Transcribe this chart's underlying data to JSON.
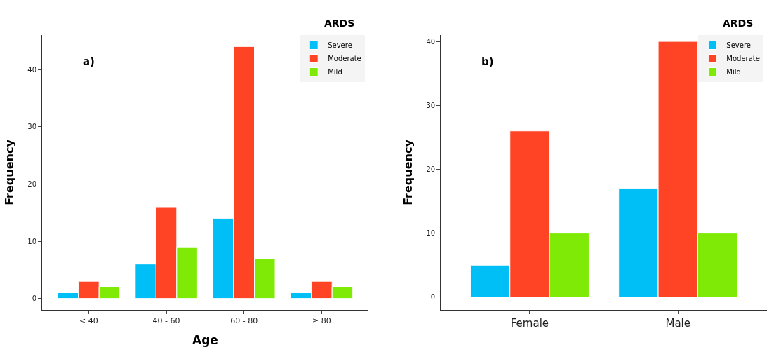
{
  "chart_data": [
    {
      "type": "bar",
      "title": "ARDS",
      "xlabel": "Age",
      "ylabel": "Frequency",
      "annotations": [
        "a)"
      ],
      "categories": [
        "< 40",
        "40 - 60",
        "60 - 80",
        "≥ 80"
      ],
      "series": [
        {
          "name": "Severe",
          "color": "#00bff7",
          "values": [
            1,
            6,
            14,
            1
          ]
        },
        {
          "name": "Moderate",
          "color": "#ff4426",
          "values": [
            3,
            16,
            44,
            3
          ]
        },
        {
          "name": "Mild",
          "color": "#7eea05",
          "values": [
            2,
            9,
            7,
            2
          ]
        }
      ],
      "ylim": [
        -2,
        46
      ],
      "yticks": [
        0,
        10,
        20,
        30,
        40
      ],
      "legend": "top right"
    },
    {
      "type": "bar",
      "title": "ARDS",
      "ylabel": "Frequency",
      "annotations": [
        "b)"
      ],
      "categories": [
        "Female",
        "Male"
      ],
      "series": [
        {
          "name": "Severe",
          "color": "#00bff7",
          "values": [
            5,
            17
          ]
        },
        {
          "name": "Moderate",
          "color": "#ff4426",
          "values": [
            26,
            40
          ]
        },
        {
          "name": "Mild",
          "color": "#7eea05",
          "values": [
            10,
            10
          ]
        }
      ],
      "ylim": [
        -2,
        41
      ],
      "yticks": [
        0,
        10,
        20,
        30,
        40
      ],
      "legend": "top right"
    }
  ]
}
